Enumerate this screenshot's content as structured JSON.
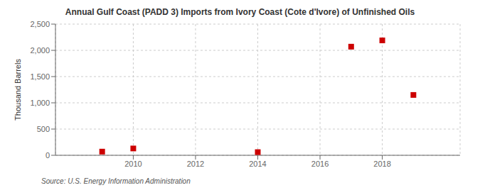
{
  "chart_data": {
    "type": "scatter",
    "title": "Annual Gulf Coast (PADD 3) Imports from Ivory Coast (Cote d'Ivore) of Unfinished Oils",
    "ylabel": "Thousand Barrels",
    "annotations": [
      "Source: U.S. Energy Information Administration"
    ],
    "x": [
      2009,
      2010,
      2014,
      2017,
      2018,
      2019
    ],
    "values": [
      70,
      130,
      60,
      2070,
      2190,
      1150
    ],
    "color": "#cc0000",
    "marker": "square",
    "xlim": [
      2007.5,
      2020.5
    ],
    "xticks": [
      2010,
      2012,
      2014,
      2016,
      2018
    ],
    "ylim": [
      0,
      2500
    ],
    "yticks": [
      0,
      500,
      {
        "value": 1000,
        "label": "1,000"
      },
      {
        "value": 1500,
        "label": "1,500"
      },
      {
        "value": 2000,
        "label": "2,000"
      },
      {
        "value": 2500,
        "label": "2,500"
      }
    ],
    "grid": true
  }
}
